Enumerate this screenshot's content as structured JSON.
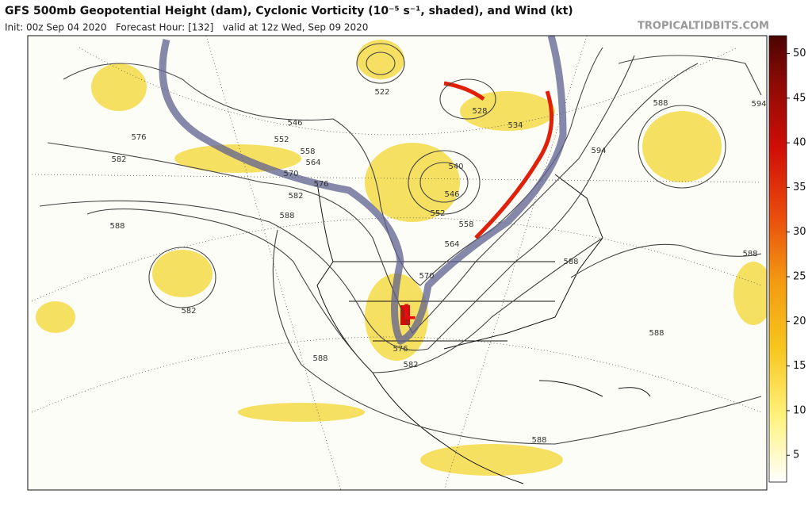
{
  "header": {
    "title": "GFS 500mb Geopotential Height (dam), Cyclonic Vorticity (10⁻⁵ s⁻¹, shaded), and Wind (kt)",
    "subtitle": "Init: 00z Sep 04 2020   Forecast Hour: [132]   valid at 12z Wed, Sep 09 2020",
    "source": "TROPICALTIDBITS.COM"
  },
  "colorbar": {
    "range": [
      2,
      52
    ],
    "ticks": [
      5,
      10,
      15,
      20,
      25,
      30,
      35,
      40,
      45,
      50
    ]
  },
  "low_marker": "L",
  "contour_labels": [
    576,
    582,
    588,
    582,
    522,
    528,
    534,
    546,
    552,
    558,
    564,
    570,
    576,
    540,
    546,
    552,
    558,
    564,
    570,
    576,
    582,
    588,
    594,
    588,
    594,
    588,
    588,
    582,
    588,
    588,
    588
  ]
}
